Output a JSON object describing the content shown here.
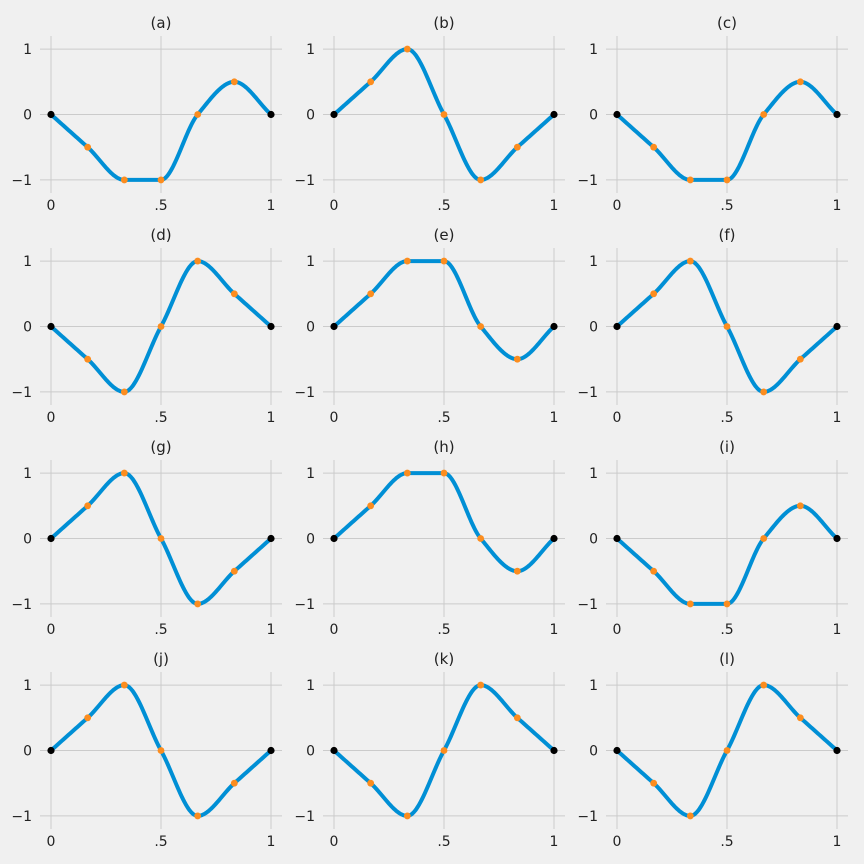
{
  "colors": {
    "background": "#f0f0f0",
    "grid": "#cbcbcb",
    "curve": "#008fd5",
    "interior_point": "#fc8d1f",
    "endpoint": "#000000"
  },
  "chart_data": [
    {
      "type": "line",
      "title": "(a)",
      "x": [
        0,
        0.16667,
        0.33333,
        0.5,
        0.66667,
        0.83333,
        1
      ],
      "y": [
        0,
        -0.5,
        -1,
        -1,
        0,
        0.5,
        0
      ],
      "x_ticks": [
        {
          "value": 0,
          "label": "0"
        },
        {
          "value": 0.5,
          "label": ".5"
        },
        {
          "value": 1,
          "label": "1"
        }
      ],
      "y_ticks": [
        {
          "value": -1,
          "label": "−1"
        },
        {
          "value": 0,
          "label": "0"
        },
        {
          "value": 1,
          "label": "1"
        }
      ],
      "xlim": [
        -0.05,
        1.05
      ],
      "ylim": [
        -1.2,
        1.2
      ],
      "grid": true
    },
    {
      "type": "line",
      "title": "(b)",
      "x": [
        0,
        0.16667,
        0.33333,
        0.5,
        0.66667,
        0.83333,
        1
      ],
      "y": [
        0,
        0.5,
        1,
        0,
        -1,
        -0.5,
        0
      ],
      "x_ticks": [
        {
          "value": 0,
          "label": "0"
        },
        {
          "value": 0.5,
          "label": ".5"
        },
        {
          "value": 1,
          "label": "1"
        }
      ],
      "y_ticks": [
        {
          "value": -1,
          "label": "−1"
        },
        {
          "value": 0,
          "label": "0"
        },
        {
          "value": 1,
          "label": "1"
        }
      ],
      "xlim": [
        -0.05,
        1.05
      ],
      "ylim": [
        -1.2,
        1.2
      ],
      "grid": true
    },
    {
      "type": "line",
      "title": "(c)",
      "x": [
        0,
        0.16667,
        0.33333,
        0.5,
        0.66667,
        0.83333,
        1
      ],
      "y": [
        0,
        -0.5,
        -1,
        -1,
        0,
        0.5,
        0
      ],
      "x_ticks": [
        {
          "value": 0,
          "label": "0"
        },
        {
          "value": 0.5,
          "label": ".5"
        },
        {
          "value": 1,
          "label": "1"
        }
      ],
      "y_ticks": [
        {
          "value": -1,
          "label": "−1"
        },
        {
          "value": 0,
          "label": "0"
        },
        {
          "value": 1,
          "label": "1"
        }
      ],
      "xlim": [
        -0.05,
        1.05
      ],
      "ylim": [
        -1.2,
        1.2
      ],
      "grid": true
    },
    {
      "type": "line",
      "title": "(d)",
      "x": [
        0,
        0.16667,
        0.33333,
        0.5,
        0.66667,
        0.83333,
        1
      ],
      "y": [
        0,
        -0.5,
        -1,
        0,
        1,
        0.5,
        0
      ],
      "x_ticks": [
        {
          "value": 0,
          "label": "0"
        },
        {
          "value": 0.5,
          "label": ".5"
        },
        {
          "value": 1,
          "label": "1"
        }
      ],
      "y_ticks": [
        {
          "value": -1,
          "label": "−1"
        },
        {
          "value": 0,
          "label": "0"
        },
        {
          "value": 1,
          "label": "1"
        }
      ],
      "xlim": [
        -0.05,
        1.05
      ],
      "ylim": [
        -1.2,
        1.2
      ],
      "grid": true
    },
    {
      "type": "line",
      "title": "(e)",
      "x": [
        0,
        0.16667,
        0.33333,
        0.5,
        0.66667,
        0.83333,
        1
      ],
      "y": [
        0,
        0.5,
        1,
        1,
        0,
        -0.5,
        0
      ],
      "x_ticks": [
        {
          "value": 0,
          "label": "0"
        },
        {
          "value": 0.5,
          "label": ".5"
        },
        {
          "value": 1,
          "label": "1"
        }
      ],
      "y_ticks": [
        {
          "value": -1,
          "label": "−1"
        },
        {
          "value": 0,
          "label": "0"
        },
        {
          "value": 1,
          "label": "1"
        }
      ],
      "xlim": [
        -0.05,
        1.05
      ],
      "ylim": [
        -1.2,
        1.2
      ],
      "grid": true
    },
    {
      "type": "line",
      "title": "(f)",
      "x": [
        0,
        0.16667,
        0.33333,
        0.5,
        0.66667,
        0.83333,
        1
      ],
      "y": [
        0,
        0.5,
        1,
        0,
        -1,
        -0.5,
        0
      ],
      "x_ticks": [
        {
          "value": 0,
          "label": "0"
        },
        {
          "value": 0.5,
          "label": ".5"
        },
        {
          "value": 1,
          "label": "1"
        }
      ],
      "y_ticks": [
        {
          "value": -1,
          "label": "−1"
        },
        {
          "value": 0,
          "label": "0"
        },
        {
          "value": 1,
          "label": "1"
        }
      ],
      "xlim": [
        -0.05,
        1.05
      ],
      "ylim": [
        -1.2,
        1.2
      ],
      "grid": true
    },
    {
      "type": "line",
      "title": "(g)",
      "x": [
        0,
        0.16667,
        0.33333,
        0.5,
        0.66667,
        0.83333,
        1
      ],
      "y": [
        0,
        0.5,
        1,
        0,
        -1,
        -0.5,
        0
      ],
      "x_ticks": [
        {
          "value": 0,
          "label": "0"
        },
        {
          "value": 0.5,
          "label": ".5"
        },
        {
          "value": 1,
          "label": "1"
        }
      ],
      "y_ticks": [
        {
          "value": -1,
          "label": "−1"
        },
        {
          "value": 0,
          "label": "0"
        },
        {
          "value": 1,
          "label": "1"
        }
      ],
      "xlim": [
        -0.05,
        1.05
      ],
      "ylim": [
        -1.2,
        1.2
      ],
      "grid": true
    },
    {
      "type": "line",
      "title": "(h)",
      "x": [
        0,
        0.16667,
        0.33333,
        0.5,
        0.66667,
        0.83333,
        1
      ],
      "y": [
        0,
        0.5,
        1,
        1,
        0,
        -0.5,
        0
      ],
      "x_ticks": [
        {
          "value": 0,
          "label": "0"
        },
        {
          "value": 0.5,
          "label": ".5"
        },
        {
          "value": 1,
          "label": "1"
        }
      ],
      "y_ticks": [
        {
          "value": -1,
          "label": "−1"
        },
        {
          "value": 0,
          "label": "0"
        },
        {
          "value": 1,
          "label": "1"
        }
      ],
      "xlim": [
        -0.05,
        1.05
      ],
      "ylim": [
        -1.2,
        1.2
      ],
      "grid": true
    },
    {
      "type": "line",
      "title": "(i)",
      "x": [
        0,
        0.16667,
        0.33333,
        0.5,
        0.66667,
        0.83333,
        1
      ],
      "y": [
        0,
        -0.5,
        -1,
        -1,
        0,
        0.5,
        0
      ],
      "x_ticks": [
        {
          "value": 0,
          "label": "0"
        },
        {
          "value": 0.5,
          "label": ".5"
        },
        {
          "value": 1,
          "label": "1"
        }
      ],
      "y_ticks": [
        {
          "value": -1,
          "label": "−1"
        },
        {
          "value": 0,
          "label": "0"
        },
        {
          "value": 1,
          "label": "1"
        }
      ],
      "xlim": [
        -0.05,
        1.05
      ],
      "ylim": [
        -1.2,
        1.2
      ],
      "grid": true
    },
    {
      "type": "line",
      "title": "(j)",
      "x": [
        0,
        0.16667,
        0.33333,
        0.5,
        0.66667,
        0.83333,
        1
      ],
      "y": [
        0,
        0.5,
        1,
        0,
        -1,
        -0.5,
        0
      ],
      "x_ticks": [
        {
          "value": 0,
          "label": "0"
        },
        {
          "value": 0.5,
          "label": ".5"
        },
        {
          "value": 1,
          "label": "1"
        }
      ],
      "y_ticks": [
        {
          "value": -1,
          "label": "−1"
        },
        {
          "value": 0,
          "label": "0"
        },
        {
          "value": 1,
          "label": "1"
        }
      ],
      "xlim": [
        -0.05,
        1.05
      ],
      "ylim": [
        -1.2,
        1.2
      ],
      "grid": true
    },
    {
      "type": "line",
      "title": "(k)",
      "x": [
        0,
        0.16667,
        0.33333,
        0.5,
        0.66667,
        0.83333,
        1
      ],
      "y": [
        0,
        -0.5,
        -1,
        0,
        1,
        0.5,
        0
      ],
      "x_ticks": [
        {
          "value": 0,
          "label": "0"
        },
        {
          "value": 0.5,
          "label": ".5"
        },
        {
          "value": 1,
          "label": "1"
        }
      ],
      "y_ticks": [
        {
          "value": -1,
          "label": "−1"
        },
        {
          "value": 0,
          "label": "0"
        },
        {
          "value": 1,
          "label": "1"
        }
      ],
      "xlim": [
        -0.05,
        1.05
      ],
      "ylim": [
        -1.2,
        1.2
      ],
      "grid": true
    },
    {
      "type": "line",
      "title": "(l)",
      "x": [
        0,
        0.16667,
        0.33333,
        0.5,
        0.66667,
        0.83333,
        1
      ],
      "y": [
        0,
        -0.5,
        -1,
        0,
        1,
        0.5,
        0
      ],
      "x_ticks": [
        {
          "value": 0,
          "label": "0"
        },
        {
          "value": 0.5,
          "label": ".5"
        },
        {
          "value": 1,
          "label": "1"
        }
      ],
      "y_ticks": [
        {
          "value": -1,
          "label": "−1"
        },
        {
          "value": 0,
          "label": "0"
        },
        {
          "value": 1,
          "label": "1"
        }
      ],
      "xlim": [
        -0.05,
        1.05
      ],
      "ylim": [
        -1.2,
        1.2
      ],
      "grid": true
    }
  ]
}
